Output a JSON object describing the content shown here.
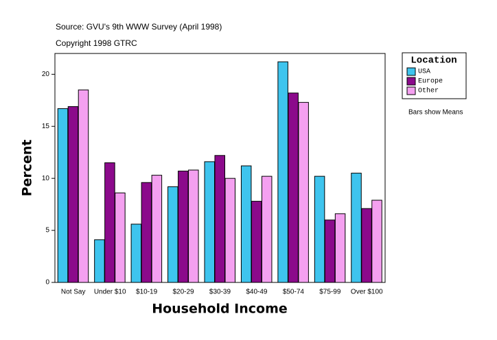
{
  "chart_data": {
    "type": "bar",
    "title": "Source: GVU's 9th WWW Survey (April 1998)",
    "subtitle": "Copyright 1998 GTRC",
    "x_label": "Household Income",
    "y_label": "Percent",
    "legend_title": "Location",
    "annotation": "Bars show Means",
    "categories": [
      "Not Say",
      "Under $10",
      "$10-19",
      "$20-29",
      "$30-39",
      "$40-49",
      "$50-74",
      "$75-99",
      "Over $100"
    ],
    "series": [
      {
        "name": "USA",
        "color": "#3ec4ee",
        "values": [
          16.7,
          4.1,
          5.6,
          9.2,
          11.6,
          11.2,
          21.2,
          10.2,
          10.5
        ]
      },
      {
        "name": "Europe",
        "color": "#8b0a8b",
        "values": [
          16.9,
          11.5,
          9.6,
          10.7,
          12.2,
          7.8,
          18.2,
          6.0,
          7.1
        ]
      },
      {
        "name": "Other",
        "color": "#f4a0f0",
        "values": [
          18.5,
          8.6,
          10.3,
          10.8,
          10.0,
          10.2,
          17.3,
          6.6,
          7.9
        ]
      }
    ],
    "ylim": [
      0,
      22
    ],
    "yticks": [
      0,
      5,
      10,
      15,
      20
    ],
    "grid": false,
    "legend": "right"
  }
}
